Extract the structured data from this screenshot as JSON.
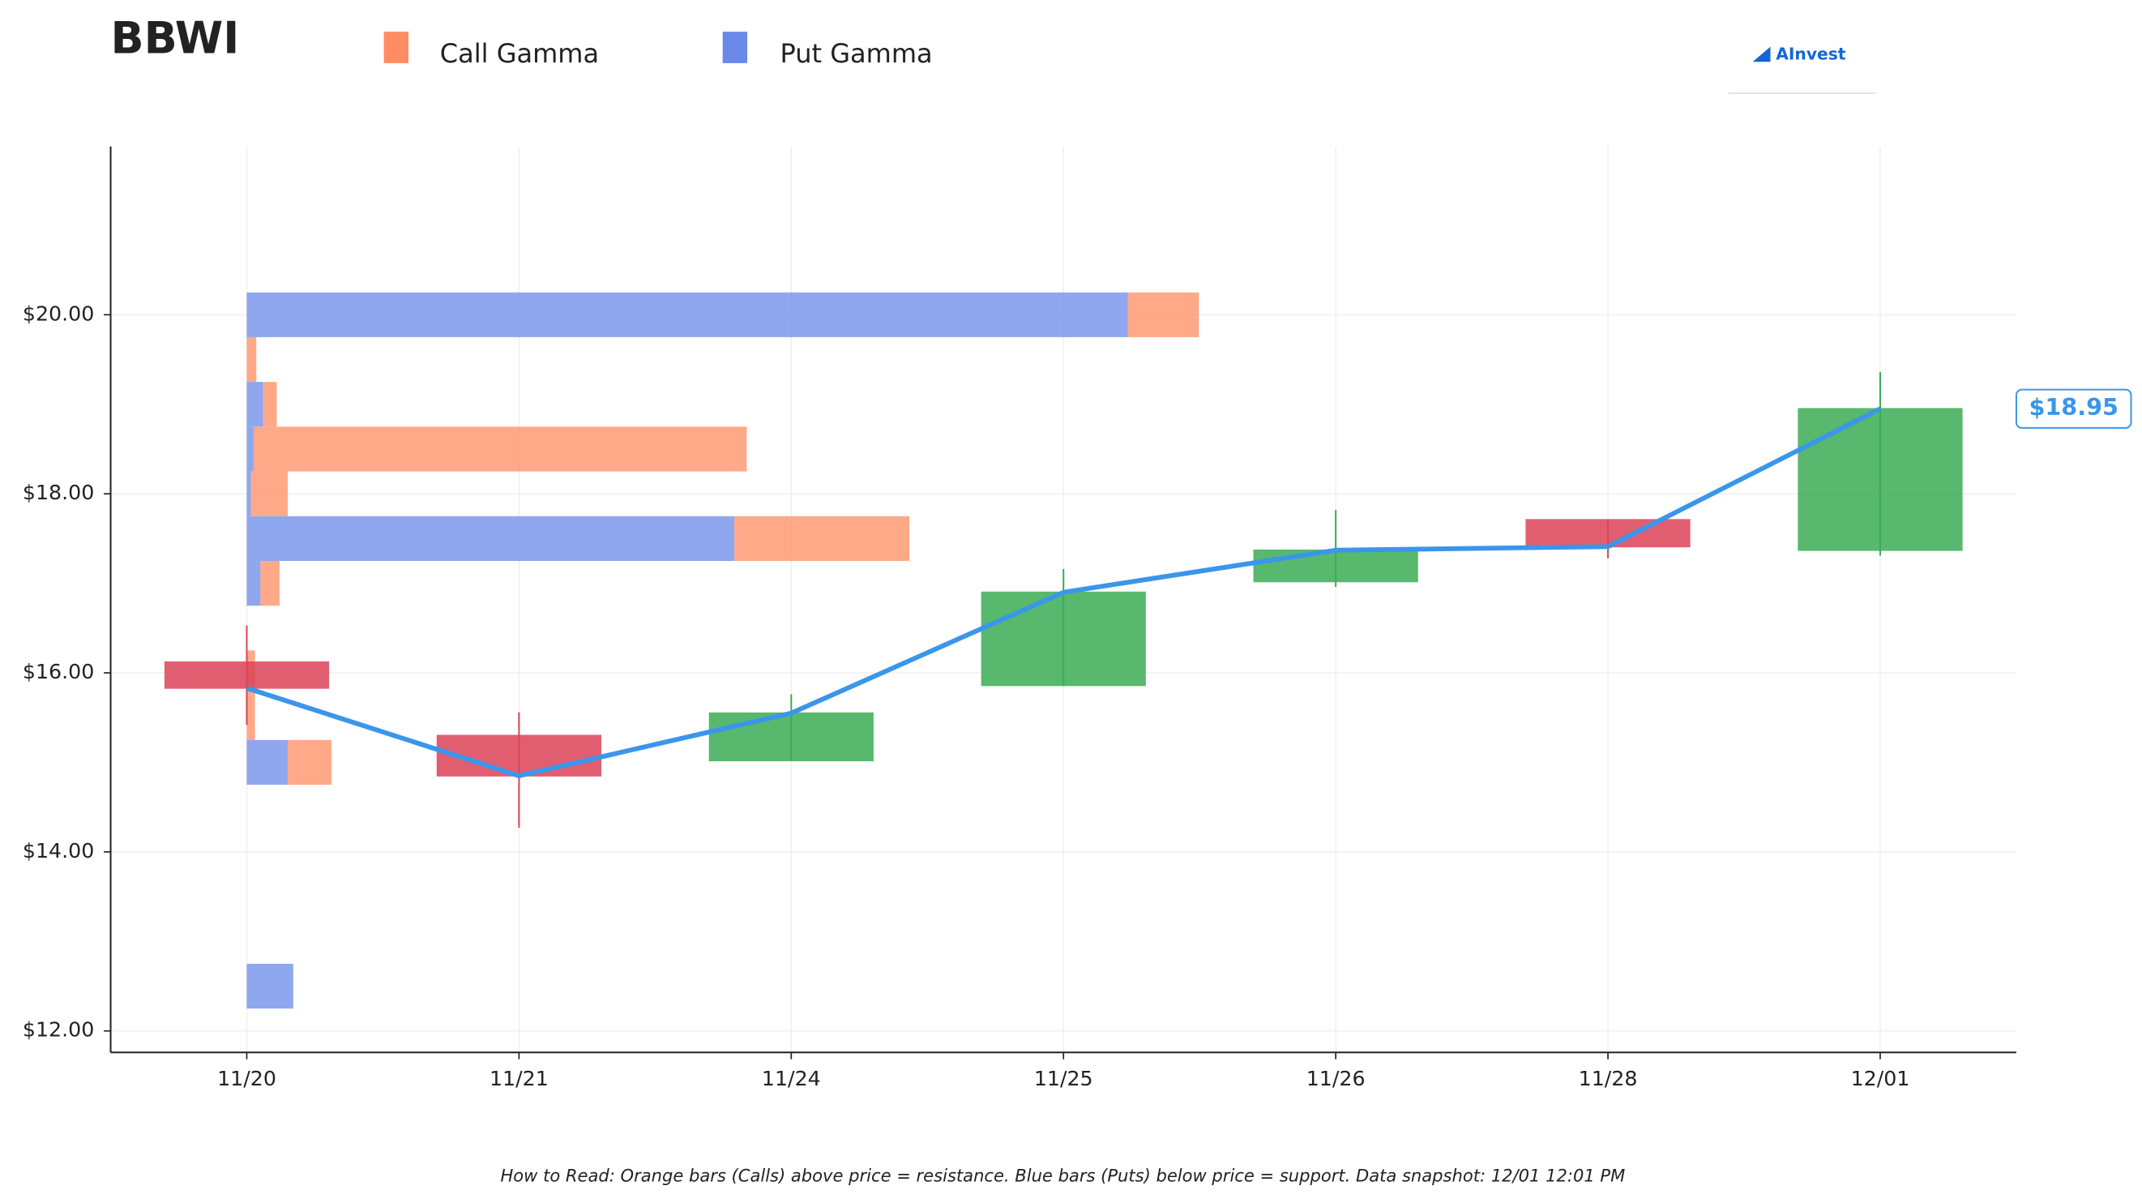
{
  "chart_data": {
    "type": "candlestick",
    "title": "BBWI",
    "logo": "AInvest",
    "categories": [
      "11/20",
      "11/21",
      "11/24",
      "11/25",
      "11/26",
      "11/28",
      "12/01"
    ],
    "open": [
      16.12,
      15.3,
      15.02,
      15.86,
      17.02,
      17.71,
      17.37
    ],
    "high": [
      16.53,
      15.56,
      15.76,
      17.16,
      17.82,
      17.71,
      19.36
    ],
    "low": [
      15.42,
      14.27,
      15.02,
      15.86,
      16.96,
      17.28,
      17.31
    ],
    "close": [
      15.83,
      14.85,
      15.55,
      16.9,
      17.37,
      17.41,
      18.95
    ],
    "up_color": "#3cac55",
    "down_color": "#dc4358",
    "line_color": "#3a96ea",
    "gamma": {
      "levels": [
        20,
        19.5,
        19,
        18.5,
        18,
        17.5,
        17,
        16,
        15.5,
        15,
        12.5
      ],
      "series": [
        {
          "name": "Put Gamma",
          "color": "#6a89e8",
          "values": [
            645,
            0,
            12,
            5,
            3,
            357,
            10,
            0,
            0,
            30,
            34
          ]
        },
        {
          "name": "Call Gamma",
          "color": "#ff8c62",
          "values": [
            52,
            7,
            10,
            361,
            27,
            128,
            14,
            6,
            6,
            32,
            0
          ]
        }
      ]
    },
    "last_price": {
      "value": 18.95,
      "label": "$18.95"
    },
    "ylim": [
      11.76,
      21.88
    ],
    "yticks": [
      {
        "value": 12,
        "label": "$12.00"
      },
      {
        "value": 14,
        "label": "$14.00"
      },
      {
        "value": 16,
        "label": "$16.00"
      },
      {
        "value": 18,
        "label": "$18.00"
      },
      {
        "value": 20,
        "label": "$20.00"
      }
    ],
    "grid": true,
    "note": "How to Read: Orange bars (Calls) above price = resistance. Blue bars (Puts) below price = support. Data snapshot: 12/01 12:01 PM"
  }
}
